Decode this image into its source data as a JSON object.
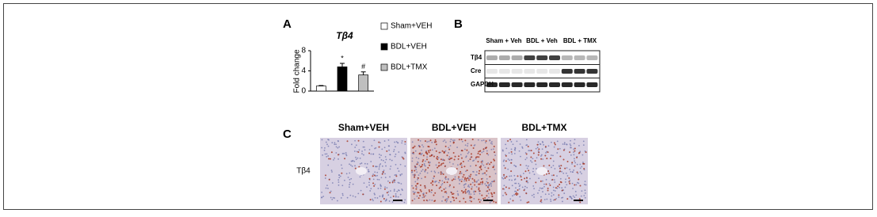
{
  "chart_data": {
    "type": "bar",
    "panel_label": "A",
    "title": "Tβ4",
    "y_label": "Fold change",
    "categories": [
      "Sham+VEH",
      "BDL+VEH",
      "BDL+TMX"
    ],
    "values": [
      1,
      4.8,
      3.2
    ],
    "errors": [
      0.1,
      0.7,
      0.6
    ],
    "colors": [
      "#ffffff",
      "#000000",
      "#bfbfbf"
    ],
    "annotations": [
      null,
      "*",
      "#"
    ],
    "ylim": [
      0,
      8
    ],
    "yticks": [
      0,
      4,
      8
    ]
  },
  "blot": {
    "panel_label": "B",
    "columns": [
      "Sham + Veh",
      "BDL + Veh",
      "BDL + TMX"
    ],
    "rows": [
      "Tβ4",
      "Cre",
      "GAPDH"
    ]
  },
  "histology": {
    "panel_label": "C",
    "columns": [
      "Sham+VEH",
      "BDL+VEH",
      "BDL+TMX"
    ],
    "row_label": "Tβ4"
  }
}
